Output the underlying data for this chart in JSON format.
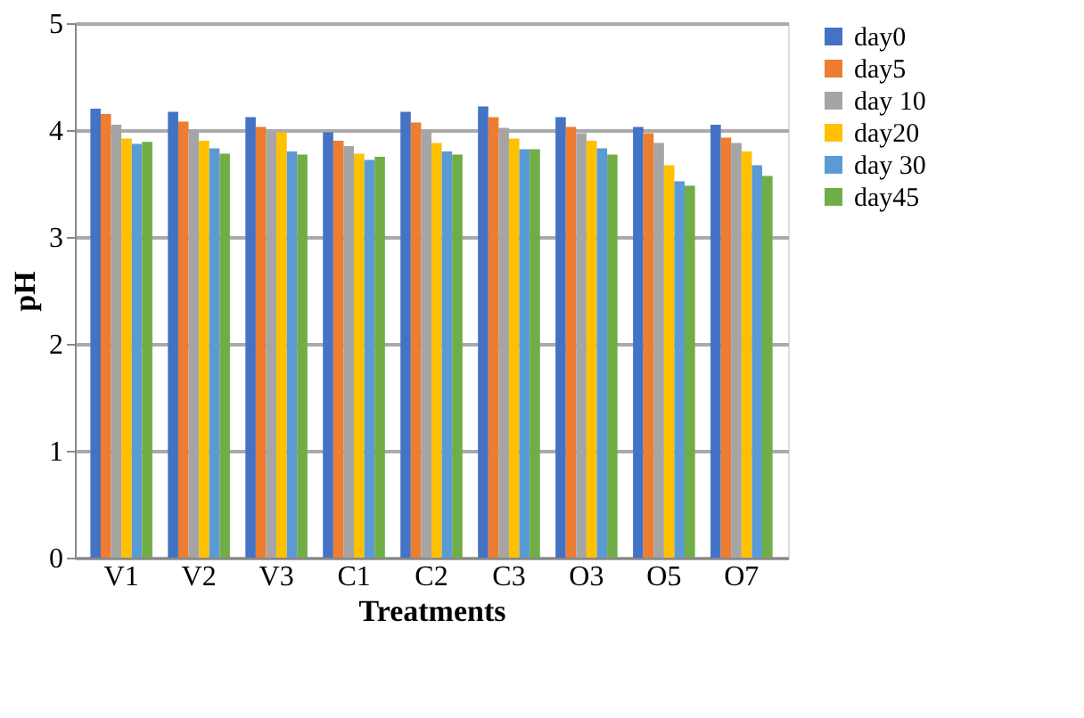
{
  "chart_data": {
    "type": "bar",
    "xlabel": "Treatments",
    "ylabel": "pH",
    "categories": [
      "V1",
      "V2",
      "V3",
      "C1",
      "C2",
      "C3",
      "O3",
      "O5",
      "O7"
    ],
    "series": [
      {
        "name": "day0",
        "color": "#4472c4",
        "values": [
          4.2,
          4.17,
          4.12,
          3.98,
          4.17,
          4.22,
          4.12,
          4.03,
          4.05
        ]
      },
      {
        "name": "day5",
        "color": "#ed7d31",
        "values": [
          4.15,
          4.08,
          4.03,
          3.9,
          4.07,
          4.12,
          4.03,
          3.97,
          3.93
        ]
      },
      {
        "name": "day 10",
        "color": "#a5a5a5",
        "values": [
          4.05,
          4.0,
          3.98,
          3.85,
          4.0,
          4.02,
          3.97,
          3.88,
          3.88
        ]
      },
      {
        "name": "day20",
        "color": "#ffc000",
        "values": [
          3.92,
          3.9,
          3.98,
          3.78,
          3.88,
          3.92,
          3.9,
          3.67,
          3.8
        ]
      },
      {
        "name": "day 30",
        "color": "#5b9bd5",
        "values": [
          3.87,
          3.83,
          3.8,
          3.72,
          3.8,
          3.82,
          3.83,
          3.52,
          3.67
        ]
      },
      {
        "name": "day45",
        "color": "#70ad47",
        "values": [
          3.89,
          3.78,
          3.77,
          3.75,
          3.77,
          3.82,
          3.77,
          3.48,
          3.57
        ]
      }
    ],
    "ylim": [
      0,
      5
    ],
    "yticks": [
      0,
      1,
      2,
      3,
      4,
      5
    ],
    "grid": "y",
    "legend": "right"
  }
}
